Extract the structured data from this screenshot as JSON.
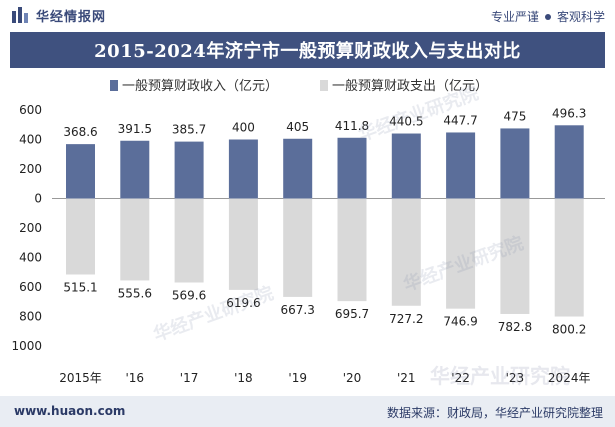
{
  "header": {
    "brand_name": "华经情报网",
    "brand_logo_icon": "bar-logo-icon",
    "tagline_left": "专业严谨",
    "tagline_right": "客观科学"
  },
  "footer": {
    "website": "www.huaon.com",
    "source": "数据来源：财政局，华经产业研究院整理"
  },
  "watermarks": [
    "华经产业研究院",
    "华经产业研究院",
    "华经产业研究院",
    "华经产业研究院"
  ],
  "colors": {
    "title_bg": "#3f517f",
    "income_bar": "#5b6e9a",
    "expense_bar": "#d9d9d9",
    "footer_bg": "#e9edf3"
  },
  "chart_data": {
    "type": "bar",
    "title": "2015-2024年济宁市一般预算财政收入与支出对比",
    "categories": [
      "2015年",
      "'16",
      "'17",
      "'18",
      "'19",
      "'20",
      "'21",
      "'22",
      "'23",
      "2024年"
    ],
    "series": [
      {
        "name": "一般预算财政收入（亿元）",
        "values": [
          368.6,
          391.5,
          385.7,
          400,
          405,
          411.8,
          440.5,
          447.7,
          475,
          496.3
        ],
        "labels": [
          "368.6",
          "391.5",
          "385.7",
          "400",
          "405",
          "411.8",
          "440.5",
          "447.7",
          "475",
          "496.3"
        ],
        "color": "#5b6e9a"
      },
      {
        "name": "一般预算财政支出（亿元）",
        "values": [
          -515.1,
          -555.6,
          -569.6,
          -619.6,
          -667.3,
          -695.7,
          -727.2,
          -746.9,
          -782.8,
          -800.2
        ],
        "labels": [
          "515.1",
          "555.6",
          "569.6",
          "619.6",
          "667.3",
          "695.7",
          "727.2",
          "746.9",
          "782.8",
          "800.2"
        ],
        "color": "#d9d9d9"
      }
    ],
    "y_ticks": [
      600,
      400,
      200,
      0,
      -200,
      -400,
      -600,
      -800,
      -1000
    ],
    "y_tick_labels": [
      "600",
      "400",
      "200",
      "0",
      "200",
      "400",
      "600",
      "800",
      "1000"
    ],
    "ylim": [
      -1000,
      600
    ],
    "legend_position": "top-center",
    "grid": false
  }
}
